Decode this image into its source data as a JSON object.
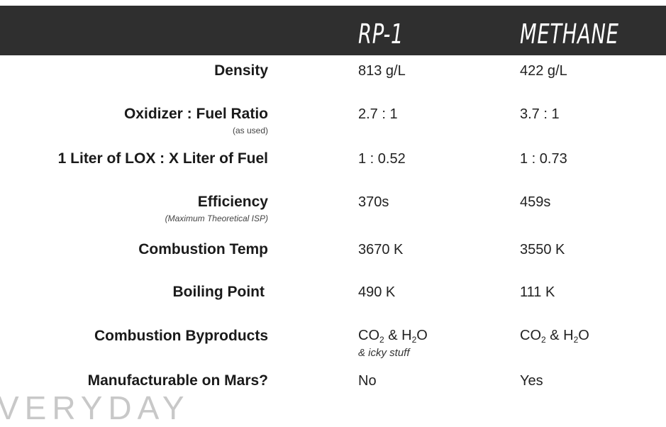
{
  "header": {
    "col1": "RP-1",
    "col2": "METHANE"
  },
  "rows": [
    {
      "label": "Density",
      "rp1": "813 g/L",
      "methane": "422 g/L"
    },
    {
      "label": "Oxidizer : Fuel Ratio",
      "sublabel": "(as used)",
      "rp1": "2.7 : 1",
      "methane": "3.7 : 1"
    },
    {
      "label": "1 Liter of LOX : X Liter of Fuel",
      "rp1": "1 : 0.52",
      "methane": "1 : 0.73"
    },
    {
      "label": "Efficiency",
      "sublabel": "(Maximum Theoretical ISP)",
      "rp1": "370s",
      "methane": "459s"
    },
    {
      "label": "Combustion Temp",
      "rp1": "3670 K",
      "methane": "3550 K"
    },
    {
      "label": "Boiling Point",
      "rp1": "490 K",
      "methane": "111 K"
    },
    {
      "label": "Combustion Byproducts",
      "rp1_parts": [
        "CO",
        "2",
        " & H",
        "2",
        "O"
      ],
      "rp1_note": "& icky stuff",
      "methane_parts": [
        "CO",
        "2",
        " & H",
        "2",
        "O"
      ]
    },
    {
      "label": "Manufacturable on Mars?",
      "rp1": "No",
      "methane": "Yes"
    }
  ],
  "watermark": "VERYDAY"
}
